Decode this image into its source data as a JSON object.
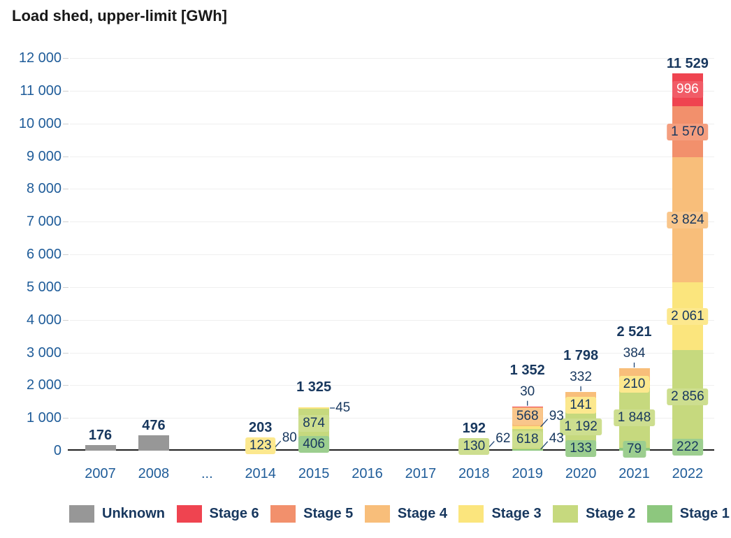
{
  "title": "Load shed, upper-limit [GWh]",
  "colors": {
    "axis_label": "#1F5C99",
    "value_label": "#17375E",
    "axis_line": "#1f1f1f",
    "gridline": "#efefef",
    "background": "#ffffff"
  },
  "chart_data": {
    "type": "bar",
    "stacked": true,
    "title": "Load shed, upper-limit [GWh]",
    "xlabel": "",
    "ylabel": "",
    "ylim": [
      0,
      12000
    ],
    "ytick_interval": 1000,
    "ytick_labels": [
      "0",
      "1 000",
      "2 000",
      "3 000",
      "4 000",
      "5 000",
      "6 000",
      "7 000",
      "8 000",
      "9 000",
      "10 000",
      "11 000",
      "12 000"
    ],
    "grid": "horizontal-faint",
    "legend_position": "bottom",
    "categories": [
      "2007",
      "2008",
      "...",
      "2014",
      "2015",
      "2016",
      "2017",
      "2018",
      "2019",
      "2020",
      "2021",
      "2022"
    ],
    "series": [
      {
        "name": "Stage 1",
        "color": "#8DC77E",
        "values": [
          0,
          0,
          0,
          0,
          406,
          0,
          0,
          62,
          43,
          133,
          79,
          222
        ]
      },
      {
        "name": "Stage 2",
        "color": "#C6D97E",
        "values": [
          0,
          0,
          0,
          80,
          874,
          0,
          0,
          130,
          618,
          1192,
          1848,
          2856
        ]
      },
      {
        "name": "Stage 3",
        "color": "#FBE57D",
        "values": [
          0,
          0,
          0,
          123,
          45,
          0,
          0,
          0,
          93,
          141,
          210,
          2061
        ]
      },
      {
        "name": "Stage 4",
        "color": "#F8BE7A",
        "values": [
          0,
          0,
          0,
          0,
          0,
          0,
          0,
          0,
          568,
          332,
          384,
          3824
        ]
      },
      {
        "name": "Stage 5",
        "color": "#F2906C",
        "values": [
          0,
          0,
          0,
          0,
          0,
          0,
          0,
          0,
          0,
          0,
          0,
          1570
        ]
      },
      {
        "name": "Stage 6",
        "color": "#EF4450",
        "values": [
          0,
          0,
          0,
          0,
          0,
          0,
          0,
          0,
          30,
          0,
          0,
          996
        ]
      },
      {
        "name": "Unknown",
        "color": "#979797",
        "values": [
          176,
          476,
          0,
          0,
          0,
          0,
          0,
          0,
          0,
          0,
          0,
          0
        ]
      }
    ],
    "totals": [
      "176",
      "476",
      "",
      "203",
      "1 325",
      "",
      "",
      "192",
      "1 352",
      "1 798",
      "2 521",
      "11 529"
    ],
    "inside_labels": [
      {
        "year": "2014",
        "stage": "Stage 3",
        "text": "123"
      },
      {
        "year": "2015",
        "stage": "Stage 1",
        "text": "406"
      },
      {
        "year": "2015",
        "stage": "Stage 2",
        "text": "874"
      },
      {
        "year": "2018",
        "stage": "Stage 2",
        "text": "130"
      },
      {
        "year": "2019",
        "stage": "Stage 2",
        "text": "618"
      },
      {
        "year": "2019",
        "stage": "Stage 4",
        "text": "568"
      },
      {
        "year": "2020",
        "stage": "Stage 1",
        "text": "133"
      },
      {
        "year": "2020",
        "stage": "Stage 2",
        "text": "1 192"
      },
      {
        "year": "2020",
        "stage": "Stage 3",
        "text": "141"
      },
      {
        "year": "2021",
        "stage": "Stage 1",
        "text": "79"
      },
      {
        "year": "2021",
        "stage": "Stage 2",
        "text": "1 848"
      },
      {
        "year": "2021",
        "stage": "Stage 3",
        "text": "210"
      },
      {
        "year": "2022",
        "stage": "Stage 1",
        "text": "222"
      },
      {
        "year": "2022",
        "stage": "Stage 2",
        "text": "2 856"
      },
      {
        "year": "2022",
        "stage": "Stage 3",
        "text": "2 061"
      },
      {
        "year": "2022",
        "stage": "Stage 4",
        "text": "3 824"
      },
      {
        "year": "2022",
        "stage": "Stage 5",
        "text": "1 570"
      },
      {
        "year": "2022",
        "stage": "Stage 6",
        "text": "996",
        "text_color": "#ffffff"
      }
    ],
    "callouts": [
      {
        "year": "2014",
        "stage": "Stage 2",
        "text": "80",
        "placement": "right-diagonal"
      },
      {
        "year": "2015",
        "stage": "Stage 3",
        "text": "45",
        "placement": "right-horizontal"
      },
      {
        "year": "2018",
        "stage": "Stage 1",
        "text": "62",
        "placement": "right-diagonal"
      },
      {
        "year": "2019",
        "stage": "Stage 3",
        "text": "93",
        "placement": "right-diagonal"
      },
      {
        "year": "2019",
        "stage": "Stage 1",
        "text": "43",
        "placement": "right-diagonal"
      },
      {
        "year": "2019",
        "stage": "Stage 6",
        "text": "30",
        "placement": "above-vertical"
      },
      {
        "year": "2020",
        "stage": "Stage 4",
        "text": "332",
        "placement": "above-vertical"
      },
      {
        "year": "2021",
        "stage": "Stage 4",
        "text": "384",
        "placement": "above-vertical"
      }
    ],
    "legend": [
      "Unknown",
      "Stage 6",
      "Stage 5",
      "Stage 4",
      "Stage 3",
      "Stage 2",
      "Stage 1"
    ]
  }
}
